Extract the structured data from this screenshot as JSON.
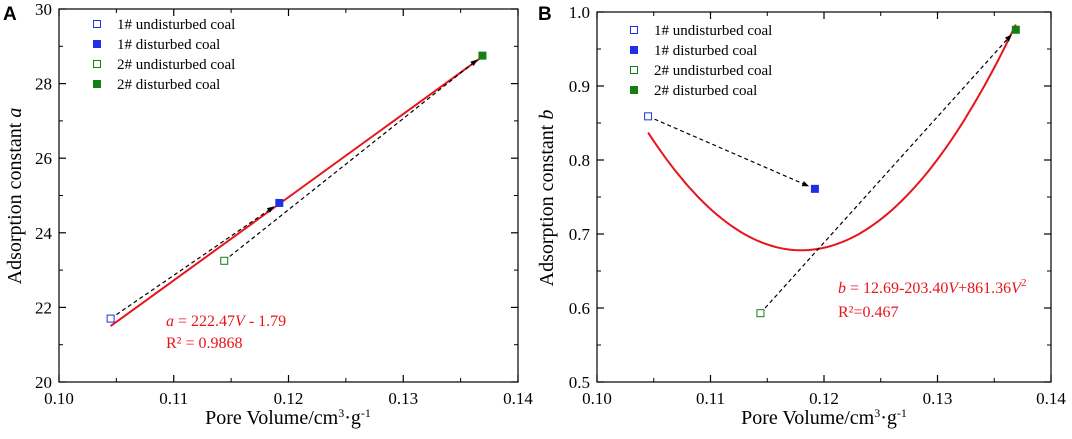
{
  "colors": {
    "blue": "#1f2fe6",
    "green": "#127f12",
    "fit": "#e8141b",
    "axis": "#000000",
    "arrow": "#000000"
  },
  "panels": {
    "a": {
      "label": "A"
    },
    "b": {
      "label": "B"
    }
  },
  "legend": [
    {
      "label": "1# undisturbed coal",
      "color": "#1f2fe6",
      "filled": false
    },
    {
      "label": "1# disturbed coal",
      "color": "#1f2fe6",
      "filled": true
    },
    {
      "label": "2# undisturbed coal",
      "color": "#127f12",
      "filled": false
    },
    {
      "label": "2# disturbed coal",
      "color": "#127f12",
      "filled": true
    }
  ],
  "chart_data": [
    {
      "type": "scatter",
      "panel": "A",
      "xlabel": "Pore Volume/cm³·g⁻¹",
      "ylabel": "Adsorption constant a",
      "xlim": [
        0.1,
        0.14
      ],
      "ylim": [
        20,
        30
      ],
      "xticks": [
        "0.10",
        "0.11",
        "0.12",
        "0.13",
        "0.14"
      ],
      "yticks": [
        "20",
        "22",
        "24",
        "26",
        "28",
        "30"
      ],
      "series": [
        {
          "name": "1# undisturbed coal",
          "x": [
            0.1045
          ],
          "y": [
            21.7
          ]
        },
        {
          "name": "1# disturbed coal",
          "x": [
            0.1192
          ],
          "y": [
            24.8
          ]
        },
        {
          "name": "2# undisturbed coal",
          "x": [
            0.1144
          ],
          "y": [
            23.25
          ]
        },
        {
          "name": "2# disturbed coal",
          "x": [
            0.1369
          ],
          "y": [
            28.75
          ]
        }
      ],
      "arrows": [
        {
          "from": [
            0.1045,
            21.7
          ],
          "to": [
            0.1192,
            24.8
          ]
        },
        {
          "from": [
            0.1144,
            23.25
          ],
          "to": [
            0.1369,
            28.75
          ]
        }
      ],
      "fit": {
        "kind": "linear",
        "c0": -1.79,
        "c1": 222.47,
        "ymode": "raw",
        "xrange": [
          0.1045,
          0.1369
        ]
      },
      "fit_from": [
        0.1045,
        21.5
      ],
      "fit_to": [
        0.1369,
        28.72
      ],
      "equation": {
        "lhs": "a",
        "eq_text": " = 222.47",
        "var": "V",
        "rest": " - 1.79",
        "r2": "R² = 0.9868"
      }
    },
    {
      "type": "scatter",
      "panel": "B",
      "xlabel": "Pore Volume/cm³·g⁻¹",
      "ylabel": "Adsorption constant b",
      "xlim": [
        0.1,
        0.14
      ],
      "ylim": [
        0.5,
        1.0
      ],
      "xticks": [
        "0.10",
        "0.11",
        "0.12",
        "0.13",
        "0.14"
      ],
      "yticks": [
        "0.5",
        "0.6",
        "0.7",
        "0.8",
        "0.9",
        "1.0"
      ],
      "series": [
        {
          "name": "1# undisturbed coal",
          "x": [
            0.1045
          ],
          "y": [
            0.859
          ]
        },
        {
          "name": "1# disturbed coal",
          "x": [
            0.1192
          ],
          "y": [
            0.761
          ]
        },
        {
          "name": "2# undisturbed coal",
          "x": [
            0.1144
          ],
          "y": [
            0.593
          ]
        },
        {
          "name": "2# disturbed coal",
          "x": [
            0.1369
          ],
          "y": [
            0.976
          ]
        }
      ],
      "arrows": [
        {
          "from": [
            0.1045,
            0.859
          ],
          "to": [
            0.1192,
            0.761
          ]
        },
        {
          "from": [
            0.1144,
            0.593
          ],
          "to": [
            0.1369,
            0.976
          ]
        }
      ],
      "fit": {
        "kind": "quadratic",
        "c0": 12.69,
        "c1": -203.4,
        "c2": 861.36,
        "vertex": [
          0.118,
          0.678
        ],
        "yleft": 0.837,
        "yright": 0.983,
        "xrange": [
          0.1045,
          0.1369
        ]
      },
      "equation": {
        "lhs": "b",
        "eq_text": " = 12.69-203.40",
        "var": "V",
        "rest": "+861.36",
        "var2": "V",
        "sup": "2",
        "r2": "R²=0.467"
      }
    }
  ]
}
